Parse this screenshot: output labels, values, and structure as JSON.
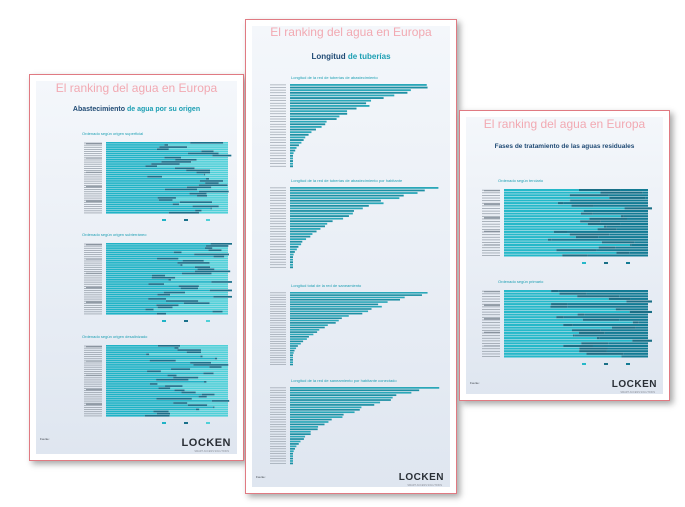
{
  "posters": [
    {
      "title": "El ranking del agua en Europa",
      "subtitle_pre": "Abastecimiento ",
      "subtitle_mid": "de agua ",
      "subtitle_post": "por su origen",
      "sections": [
        "Ordenado según origen superficial",
        "Ordenado según origen subterráneo",
        "Ordenado según origen desalinizado"
      ],
      "source_label": "Fuente:",
      "logo": "LOCKEN",
      "logo_tag": "SMART ACCESS SOLUTIONS"
    },
    {
      "title": "El ranking del agua en Europa",
      "subtitle_pre": "Longitud ",
      "subtitle_mid": "de tuberías",
      "subtitle_post": "",
      "sections": [
        "Longitud de la red de tuberías de abastecimiento",
        "Longitud de la red de tuberías de abastecimiento por habitante",
        "Longitud total de la red de saneamiento",
        "Longitud de la red de saneamiento por habitante conectado"
      ],
      "source_label": "Fuente:",
      "logo": "LOCKEN",
      "logo_tag": "SMART ACCESS SOLUTIONS"
    },
    {
      "title": "El ranking del agua en Europa",
      "subtitle_pre": "Fases de tratamiento de las aguas residuales",
      "subtitle_mid": "",
      "subtitle_post": "",
      "sections": [
        "Ordenado según terciario",
        "Ordenado según primario"
      ],
      "source_label": "Fuente:",
      "logo": "LOCKEN",
      "logo_tag": "SMART ACCESS SOLUTIONS"
    }
  ]
}
